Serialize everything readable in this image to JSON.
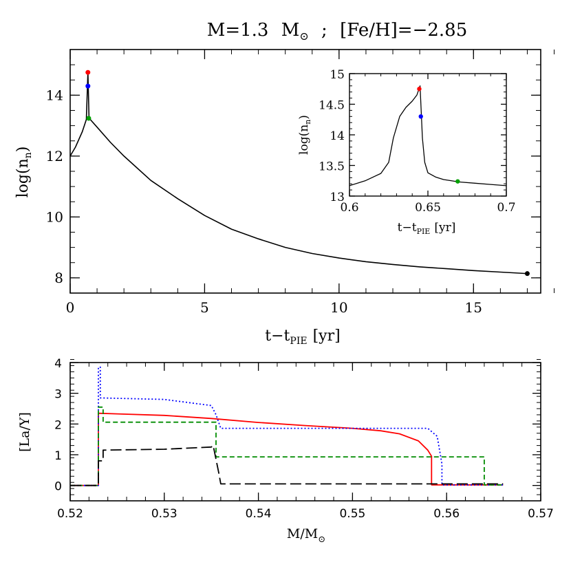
{
  "title_parts": {
    "m_label": "M=1.3",
    "m_unit": "M",
    "sep": ";",
    "feh": "[Fe/H]=−2.85"
  },
  "chart_data": [
    {
      "id": "main",
      "type": "line",
      "xlabel_main": "t−t",
      "xlabel_sub": "PIE",
      "xlabel_unit": "[yr]",
      "ylabel_main": "log(n",
      "ylabel_sub": "n",
      "ylabel_close": ")",
      "xlim": [
        0,
        17.5
      ],
      "ylim": [
        7.5,
        15.5
      ],
      "xticks": [
        0,
        5,
        10,
        15
      ],
      "yticks": [
        8,
        10,
        12,
        14
      ],
      "grid": false,
      "series": [
        {
          "color": "#000000",
          "x": [
            0,
            0.2,
            0.45,
            0.6,
            0.66,
            0.7,
            1.0,
            1.5,
            2,
            3,
            4,
            5,
            6,
            7,
            8,
            9,
            10,
            11,
            12,
            13,
            14,
            15,
            16,
            17
          ],
          "y": [
            12.0,
            12.3,
            12.8,
            13.2,
            14.75,
            13.25,
            12.95,
            12.45,
            12.0,
            11.2,
            10.6,
            10.05,
            9.6,
            9.28,
            9.0,
            8.8,
            8.65,
            8.53,
            8.44,
            8.36,
            8.3,
            8.24,
            8.19,
            8.14
          ]
        }
      ],
      "markers": [
        {
          "x": 0.66,
          "y": 14.75,
          "color": "#ff0000"
        },
        {
          "x": 0.66,
          "y": 14.3,
          "color": "#0000ff"
        },
        {
          "x": 0.69,
          "y": 13.24,
          "color": "#00a000"
        },
        {
          "x": 17.0,
          "y": 8.14,
          "color": "#000000"
        }
      ]
    },
    {
      "id": "inset",
      "type": "line",
      "xlabel_main": "t−t",
      "xlabel_sub": "PIE",
      "xlabel_unit": "[yr]",
      "ylabel_main": "log(n",
      "ylabel_sub": "n",
      "ylabel_close": ")",
      "xlim": [
        0.6,
        0.7
      ],
      "ylim": [
        13.0,
        15.0
      ],
      "xticks": [
        0.6,
        0.65,
        0.7
      ],
      "yticks": [
        13,
        13.5,
        14,
        14.5,
        15
      ],
      "grid": false,
      "series": [
        {
          "color": "#000000",
          "x": [
            0.6,
            0.61,
            0.62,
            0.625,
            0.628,
            0.632,
            0.636,
            0.64,
            0.643,
            0.645,
            0.6465,
            0.648,
            0.65,
            0.655,
            0.66,
            0.67,
            0.68,
            0.69,
            0.7
          ],
          "y": [
            13.17,
            13.25,
            13.37,
            13.55,
            13.95,
            14.3,
            14.45,
            14.55,
            14.65,
            14.8,
            13.95,
            13.55,
            13.38,
            13.31,
            13.27,
            13.23,
            13.21,
            13.19,
            13.17
          ]
        }
      ],
      "markers": [
        {
          "x": 0.6445,
          "y": 14.75,
          "color": "#ff0000"
        },
        {
          "x": 0.6455,
          "y": 14.3,
          "color": "#0000ff"
        },
        {
          "x": 0.669,
          "y": 13.24,
          "color": "#00a000"
        }
      ]
    },
    {
      "id": "bottom",
      "type": "line",
      "xlabel_main": "M/M",
      "ylabel": "[La/Y]",
      "xlim": [
        0.52,
        0.57
      ],
      "ylim": [
        -0.5,
        4.0
      ],
      "xticks": [
        0.52,
        0.53,
        0.54,
        0.55,
        0.56,
        0.57
      ],
      "yticks": [
        0,
        1,
        2,
        3,
        4
      ],
      "grid": false,
      "series": [
        {
          "color": "#ff0000",
          "dash": "",
          "x": [
            0.52,
            0.523,
            0.523,
            0.525,
            0.53,
            0.535,
            0.54,
            0.545,
            0.55,
            0.553,
            0.555,
            0.557,
            0.558,
            0.5584,
            0.5584,
            0.566
          ],
          "y": [
            0,
            0,
            2.35,
            2.33,
            2.28,
            2.18,
            2.05,
            1.95,
            1.86,
            1.78,
            1.68,
            1.45,
            1.15,
            0.95,
            0.02,
            0.02
          ]
        },
        {
          "color": "#0000ff",
          "dash": "2,3",
          "x": [
            0.52,
            0.523,
            0.523,
            0.5232,
            0.5232,
            0.53,
            0.535,
            0.5355,
            0.536,
            0.558,
            0.559,
            0.5595,
            0.5595,
            0.566
          ],
          "y": [
            0,
            0,
            3.85,
            3.85,
            2.85,
            2.8,
            2.6,
            2.3,
            1.86,
            1.86,
            1.6,
            0.7,
            0.02,
            0.02
          ]
        },
        {
          "color": "#008c00",
          "dash": "7,4",
          "x": [
            0.52,
            0.523,
            0.523,
            0.5235,
            0.5235,
            0.535,
            0.5355,
            0.5355,
            0.564,
            0.564,
            0.566
          ],
          "y": [
            0,
            0,
            2.55,
            2.55,
            2.06,
            2.06,
            2.06,
            0.93,
            0.93,
            0.02,
            0.02
          ]
        },
        {
          "color": "#000000",
          "dash": "16,6",
          "x": [
            0.52,
            0.523,
            0.523,
            0.5235,
            0.5235,
            0.53,
            0.535,
            0.5352,
            0.5358,
            0.536,
            0.566
          ],
          "y": [
            0,
            0,
            0.8,
            0.8,
            1.15,
            1.18,
            1.25,
            1.3,
            0.4,
            0.05,
            0.05
          ]
        }
      ]
    }
  ]
}
